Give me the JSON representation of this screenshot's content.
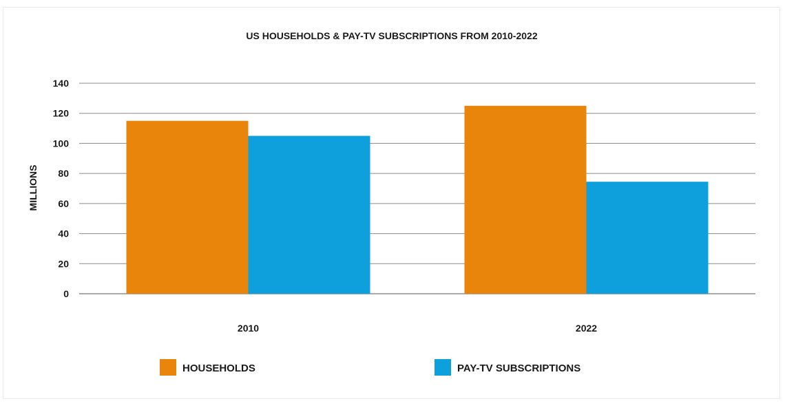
{
  "chart_data": {
    "type": "bar",
    "title": "US HOUSEHOLDS & PAY-TV SUBSCRIPTIONS FROM 2010-2022",
    "xlabel": "",
    "ylabel": "MILLIONS",
    "categories": [
      "2010",
      "2022"
    ],
    "ylim": [
      0,
      140
    ],
    "yticks": [
      0,
      20,
      40,
      60,
      80,
      100,
      120,
      140
    ],
    "grid": true,
    "legend_position": "bottom",
    "series": [
      {
        "name": "HOUSEHOLDS",
        "color": "#E8850A",
        "values": [
          115,
          125
        ]
      },
      {
        "name": "PAY-TV SUBSCRIPTIONS",
        "color": "#0DA0DC",
        "values": [
          105,
          74.5
        ]
      }
    ]
  }
}
